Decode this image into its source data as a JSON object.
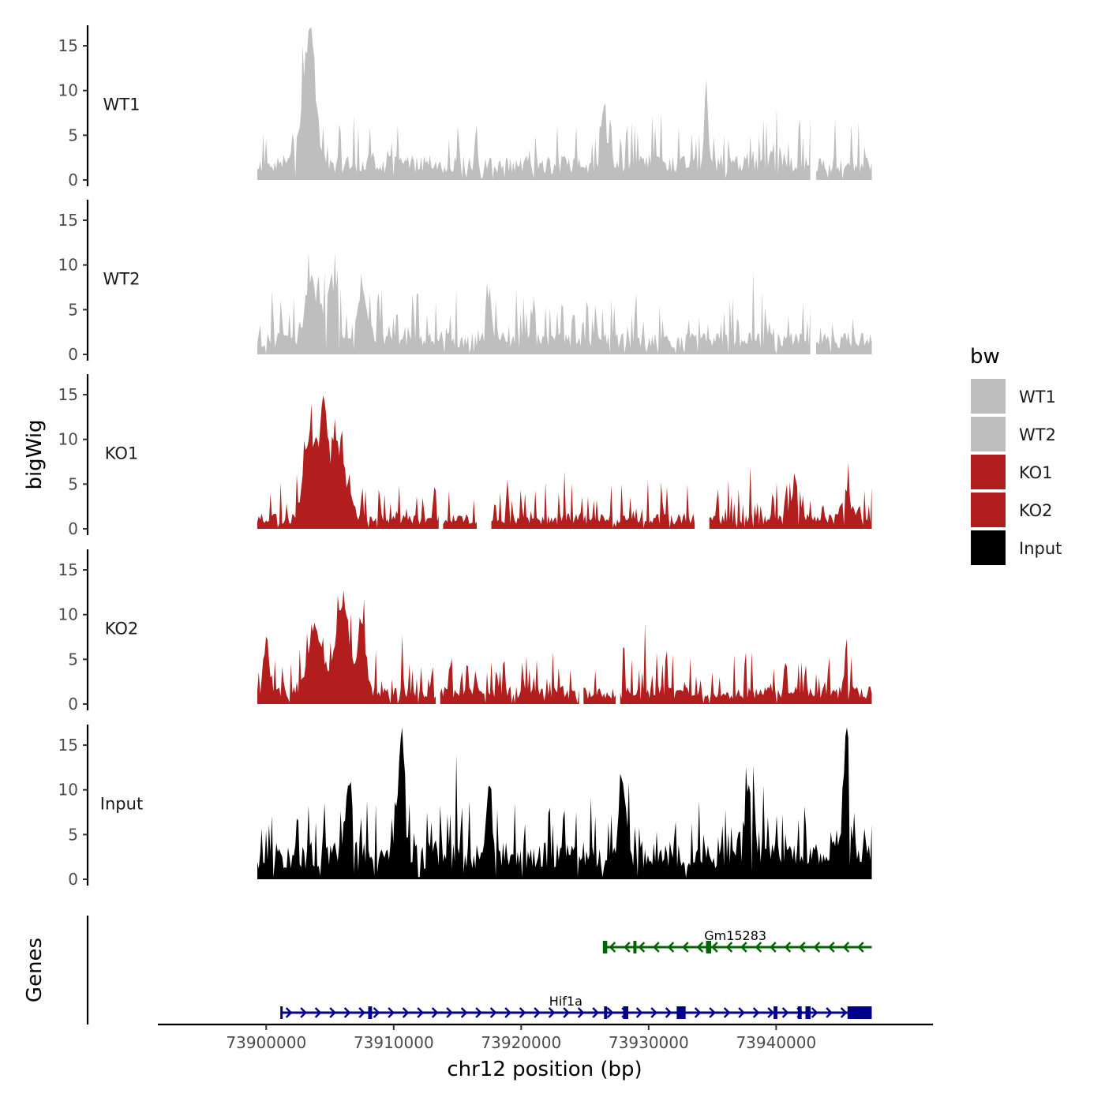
{
  "chart_data": {
    "type": "area",
    "region": {
      "chrom": "chr12",
      "start": 73899300,
      "end": 73947500
    },
    "tracks": [
      {
        "name": "WT1",
        "color": "#bebebe",
        "seed": 11,
        "baseline": 2.2,
        "amp": 3.2,
        "peaks": [
          [
            73903500,
            15.5,
            350
          ],
          [
            73902900,
            6,
            500
          ],
          [
            73926500,
            7,
            200
          ],
          [
            73934500,
            8,
            150
          ],
          [
            73940000,
            7,
            150
          ]
        ]
      },
      {
        "name": "WT2",
        "color": "#bebebe",
        "seed": 23,
        "baseline": 2.0,
        "amp": 3.2,
        "peaks": [
          [
            73903500,
            8,
            400
          ],
          [
            73905000,
            7,
            500
          ],
          [
            73907500,
            6,
            400
          ],
          [
            73917500,
            7,
            150
          ],
          [
            73939000,
            6,
            200
          ]
        ]
      },
      {
        "name": "KO1",
        "color": "#b21e1e",
        "seed": 37,
        "baseline": 1.4,
        "amp": 2.6,
        "peaks": [
          [
            73903500,
            11,
            500
          ],
          [
            73905500,
            9.5,
            700
          ],
          [
            73904500,
            10,
            250
          ],
          [
            73941500,
            5,
            300
          ],
          [
            73945500,
            4.5,
            300
          ]
        ]
      },
      {
        "name": "KO2",
        "color": "#b21e1e",
        "seed": 53,
        "baseline": 1.6,
        "amp": 2.8,
        "peaks": [
          [
            73903800,
            8,
            600
          ],
          [
            73906000,
            10,
            600
          ],
          [
            73907500,
            9,
            300
          ],
          [
            73945500,
            6.5,
            150
          ],
          [
            73900000,
            7,
            200
          ]
        ]
      },
      {
        "name": "Input",
        "color": "#000000",
        "seed": 71,
        "baseline": 3.3,
        "amp": 3.5,
        "peaks": [
          [
            73910600,
            15.5,
            250
          ],
          [
            73945500,
            15.5,
            250
          ],
          [
            73938000,
            9,
            300
          ],
          [
            73906500,
            9,
            300
          ],
          [
            73917500,
            9,
            200
          ],
          [
            73928000,
            9,
            300
          ]
        ]
      }
    ],
    "gaps": {
      "WT1": [
        [
          73942700,
          73943100
        ]
      ],
      "WT2": [
        [
          73942700,
          73943100
        ]
      ],
      "KO1": [
        [
          73913600,
          73913800
        ],
        [
          73916600,
          73917600
        ],
        [
          73933700,
          73934700
        ]
      ],
      "KO2": [
        [
          73913400,
          73913600
        ],
        [
          73924600,
          73924800
        ],
        [
          73927500,
          73927700
        ]
      ],
      "Input": []
    },
    "ylim": [
      0,
      17
    ],
    "yticks": [
      0,
      5,
      10,
      15
    ],
    "ylabel": "bigWig",
    "x_axis": {
      "label": "chr12 position (bp)",
      "ticks": [
        73900000,
        73910000,
        73920000,
        73930000,
        73940000
      ],
      "tick_labels": [
        "73900000",
        "73910000",
        "73920000",
        "73930000",
        "73940000"
      ],
      "range": [
        73891500,
        73952300
      ]
    },
    "genes_panel_label": "Genes",
    "genes": [
      {
        "name": "Gm15283",
        "strand": "-",
        "color": "#006400",
        "start": 73926500,
        "end": 73947500,
        "exons": [
          [
            73926500,
            73926650
          ],
          [
            73928800,
            73928950
          ],
          [
            73934500,
            73934900
          ]
        ]
      },
      {
        "name": "Hif1a",
        "strand": "+",
        "color": "#00008b",
        "start": 73901200,
        "end": 73947500,
        "exons": [
          [
            73908000,
            73908300
          ],
          [
            73926500,
            73926650
          ],
          [
            73928000,
            73928400
          ],
          [
            73932200,
            73932900
          ],
          [
            73939800,
            73940100
          ],
          [
            73941700,
            73942000
          ],
          [
            73942300,
            73942700
          ],
          [
            73945600,
            73947500
          ]
        ]
      }
    ],
    "legend": {
      "title": "bw",
      "entries": [
        {
          "label": "WT1",
          "color": "#bebebe"
        },
        {
          "label": "WT2",
          "color": "#bebebe"
        },
        {
          "label": "KO1",
          "color": "#b21e1e"
        },
        {
          "label": "KO2",
          "color": "#b21e1e"
        },
        {
          "label": "Input",
          "color": "#000000"
        }
      ]
    }
  }
}
